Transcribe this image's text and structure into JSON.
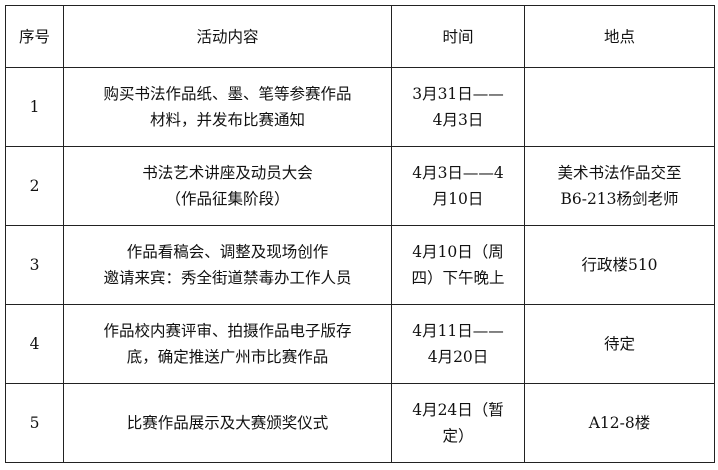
{
  "headers": [
    "序号",
    "活动内容",
    "时间",
    "地点"
  ],
  "rows": [
    {
      "no": "1",
      "content": [
        "购买书法作品纸、墨、笔等参赛作品",
        "材料，并发布比赛通知"
      ],
      "time": [
        "3月31日——",
        "4月3日"
      ],
      "place": [
        ""
      ]
    },
    {
      "no": "2",
      "content": [
        "书法艺术讲座及动员大会",
        "（作品征集阶段）"
      ],
      "time": [
        "4月3日——4",
        "月10日"
      ],
      "place": [
        "美术书法作品交至",
        "B6-213杨剑老师"
      ]
    },
    {
      "no": "3",
      "content": [
        "作品看稿会、调整及现场创作",
        "邀请来宾：秀全街道禁毒办工作人员"
      ],
      "time": [
        "4月10日（周",
        "四）下午晚上"
      ],
      "place": [
        "行政楼510"
      ]
    },
    {
      "no": "4",
      "content": [
        "作品校内赛评审、拍摄作品电子版存",
        "底，确定推送广州市比赛作品"
      ],
      "time": [
        "4月11日——",
        "4月20日"
      ],
      "place": [
        "待定"
      ]
    },
    {
      "no": "5",
      "content": [
        "比赛作品展示及大赛颁奖仪式"
      ],
      "time": [
        "4月24日（暂",
        "定）"
      ],
      "place": [
        "A12-8楼"
      ]
    }
  ]
}
